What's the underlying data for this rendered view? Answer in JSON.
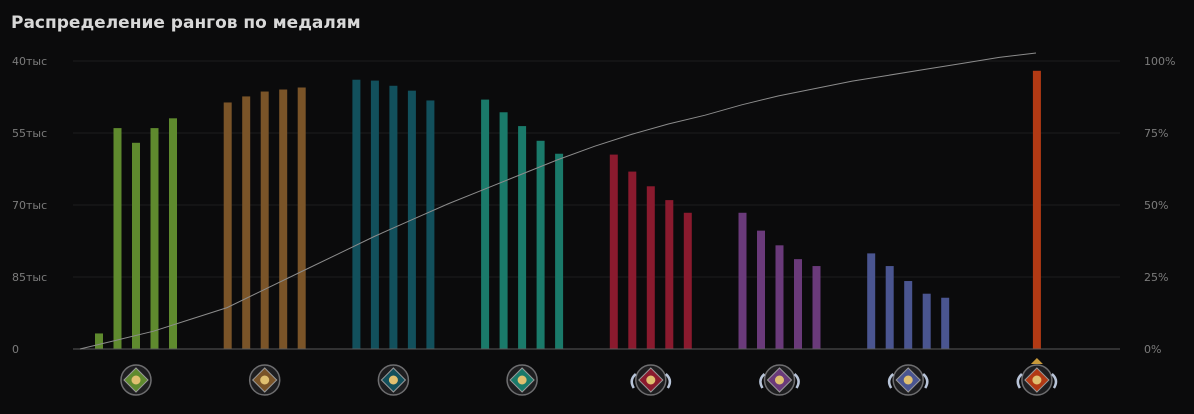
{
  "chart_data": {
    "type": "bar",
    "title": "Распределение рангов по медалям",
    "left_axis": {
      "tick_labels": [
        "40тыс",
        "55тыс",
        "70тыс",
        "85тыс",
        "0"
      ]
    },
    "right_axis": {
      "tick_labels": [
        "100%",
        "75%",
        "50%",
        "25%",
        "0%"
      ],
      "ylim": [
        0,
        100
      ]
    },
    "ylim": [
      0,
      100
    ],
    "grid": true,
    "legend": "none",
    "groups": [
      {
        "name": "Herald",
        "color": "#5f8a2e",
        "icon": "herald-medal-icon",
        "values": [
          5.4,
          76.7,
          71.6,
          76.7,
          80.1
        ]
      },
      {
        "name": "Guardian",
        "color": "#7a5428",
        "icon": "guardian-medal-icon",
        "values": [
          85.6,
          87.7,
          89.4,
          90.1,
          90.8
        ]
      },
      {
        "name": "Crusader",
        "color": "#12505c",
        "icon": "crusader-medal-icon",
        "values": [
          93.5,
          93.2,
          91.4,
          89.7,
          86.3
        ]
      },
      {
        "name": "Archon",
        "color": "#1a7a6a",
        "icon": "archon-medal-icon",
        "values": [
          86.6,
          82.2,
          77.4,
          72.3,
          67.8
        ]
      },
      {
        "name": "Legend",
        "color": "#8a1a2e",
        "icon": "legend-medal-icon",
        "values": [
          67.5,
          61.6,
          56.5,
          51.7,
          47.3
        ]
      },
      {
        "name": "Ancient",
        "color": "#6a3a7a",
        "icon": "ancient-medal-icon",
        "values": [
          47.3,
          41.1,
          36.0,
          31.2,
          28.8
        ]
      },
      {
        "name": "Divine",
        "color": "#4a5590",
        "icon": "divine-medal-icon",
        "values": [
          33.2,
          28.8,
          23.6,
          19.2,
          17.8
        ]
      },
      {
        "name": "Immortal",
        "color": "#b23a14",
        "icon": "immortal-medal-icon",
        "values": [
          96.6
        ]
      }
    ],
    "cumulative_percent": [
      [
        0,
        0
      ],
      [
        2,
        3
      ],
      [
        4,
        6
      ],
      [
        6,
        10
      ],
      [
        8,
        14
      ],
      [
        10,
        20
      ],
      [
        12,
        26
      ],
      [
        14,
        32
      ],
      [
        16,
        38
      ],
      [
        18,
        43.5
      ],
      [
        20,
        49
      ],
      [
        22,
        54
      ],
      [
        24,
        59
      ],
      [
        26,
        64
      ],
      [
        28,
        68.5
      ],
      [
        30,
        72.5
      ],
      [
        32,
        76
      ],
      [
        34,
        79
      ],
      [
        36,
        82.5
      ],
      [
        38,
        85.5
      ],
      [
        40,
        88
      ],
      [
        42,
        90.5
      ],
      [
        44,
        92.5
      ],
      [
        46,
        94.5
      ],
      [
        48,
        96.5
      ],
      [
        50,
        98.5
      ],
      [
        52,
        100
      ]
    ]
  }
}
